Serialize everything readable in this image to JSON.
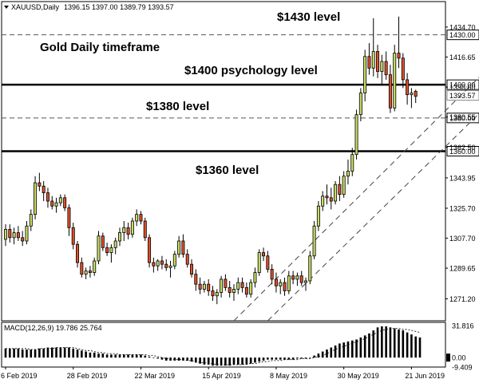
{
  "chart_data": {
    "type": "candlestick",
    "header": {
      "symbol_line": "XAUUSD,Daily",
      "ohlc_text": "1396.15 1397.00 1389.79 1393.57",
      "macd_label": "MACD(12,26,9) 19.786 25.764"
    },
    "annotations": [
      "$1430 level",
      "Gold Daily timeframe",
      "$1400 psychology level",
      "$1380 level",
      "$1360 level"
    ],
    "price_axis": {
      "ylim": [
        1258,
        1450
      ],
      "ticks": [
        "1434.70",
        "1416.65",
        "1398.60",
        "1380.55",
        "1362.50",
        "1343.95",
        "1325.70",
        "1307.70",
        "1289.65",
        "1271.20"
      ],
      "tick_values": [
        1434.7,
        1416.65,
        1398.6,
        1380.55,
        1362.5,
        1343.95,
        1325.7,
        1307.7,
        1289.65,
        1271.2
      ]
    },
    "levels": [
      {
        "label": "1430.00",
        "value": 1430,
        "style": "dashed"
      },
      {
        "label": "1400.00",
        "value": 1400,
        "style": "solid-thick"
      },
      {
        "label": "1393.57",
        "value": 1393.57,
        "style": "current-price"
      },
      {
        "label": "1380.00",
        "value": 1380,
        "style": "dashed"
      },
      {
        "label": "1360.00",
        "value": 1360,
        "style": "solid-thick"
      }
    ],
    "channel": {
      "lower": [
        [
          62,
          1258
        ],
        [
          101,
          1345
        ],
        [
          112,
          1380
        ],
        [
          131,
          1430
        ]
      ],
      "upper": [
        [
          54,
          1258
        ],
        [
          89,
          1345
        ],
        [
          103,
          1395
        ],
        [
          130,
          1450
        ]
      ]
    },
    "date_axis": {
      "labels": [
        "6 Feb 2019",
        "28 Feb 2019",
        "22 Mar 2019",
        "15 Apr 2019",
        "8 May 2019",
        "30 May 2019",
        "21 Jun 2019"
      ],
      "label_index": [
        0,
        16,
        32,
        48,
        64,
        80,
        96
      ]
    },
    "candles": [
      [
        1307,
        1316,
        1303,
        1313
      ],
      [
        1313,
        1316,
        1305,
        1308
      ],
      [
        1308,
        1314,
        1304,
        1311
      ],
      [
        1311,
        1315,
        1306,
        1308
      ],
      [
        1308,
        1312,
        1303,
        1306
      ],
      [
        1306,
        1318,
        1304,
        1315
      ],
      [
        1315,
        1325,
        1312,
        1322
      ],
      [
        1322,
        1345,
        1319,
        1341
      ],
      [
        1341,
        1347,
        1336,
        1339
      ],
      [
        1339,
        1342,
        1330,
        1335
      ],
      [
        1335,
        1338,
        1326,
        1330
      ],
      [
        1330,
        1333,
        1325,
        1327
      ],
      [
        1327,
        1332,
        1323,
        1329
      ],
      [
        1329,
        1334,
        1327,
        1332
      ],
      [
        1332,
        1334,
        1324,
        1326
      ],
      [
        1326,
        1328,
        1309,
        1314
      ],
      [
        1314,
        1317,
        1301,
        1304
      ],
      [
        1304,
        1306,
        1290,
        1293
      ],
      [
        1293,
        1296,
        1284,
        1286
      ],
      [
        1286,
        1290,
        1283,
        1288
      ],
      [
        1288,
        1291,
        1284,
        1287
      ],
      [
        1287,
        1296,
        1285,
        1294
      ],
      [
        1294,
        1312,
        1292,
        1309
      ],
      [
        1309,
        1311,
        1300,
        1302
      ],
      [
        1302,
        1305,
        1297,
        1299
      ],
      [
        1299,
        1304,
        1293,
        1302
      ],
      [
        1302,
        1308,
        1298,
        1306
      ],
      [
        1306,
        1314,
        1303,
        1311
      ],
      [
        1311,
        1318,
        1306,
        1314
      ],
      [
        1314,
        1317,
        1307,
        1310
      ],
      [
        1310,
        1320,
        1308,
        1318
      ],
      [
        1318,
        1325,
        1315,
        1322
      ],
      [
        1322,
        1324,
        1316,
        1318
      ],
      [
        1318,
        1320,
        1306,
        1308
      ],
      [
        1308,
        1310,
        1290,
        1293
      ],
      [
        1293,
        1296,
        1287,
        1291
      ],
      [
        1291,
        1295,
        1288,
        1294
      ],
      [
        1294,
        1297,
        1289,
        1292
      ],
      [
        1292,
        1295,
        1288,
        1290
      ],
      [
        1290,
        1294,
        1284,
        1291
      ],
      [
        1291,
        1300,
        1289,
        1298
      ],
      [
        1298,
        1309,
        1296,
        1306
      ],
      [
        1306,
        1310,
        1296,
        1298
      ],
      [
        1298,
        1301,
        1290,
        1292
      ],
      [
        1292,
        1295,
        1284,
        1286
      ],
      [
        1286,
        1289,
        1276,
        1280
      ],
      [
        1280,
        1284,
        1274,
        1277
      ],
      [
        1277,
        1282,
        1275,
        1280
      ],
      [
        1280,
        1283,
        1273,
        1276
      ],
      [
        1276,
        1279,
        1270,
        1273
      ],
      [
        1273,
        1277,
        1268,
        1275
      ],
      [
        1275,
        1285,
        1272,
        1283
      ],
      [
        1283,
        1286,
        1276,
        1278
      ],
      [
        1278,
        1282,
        1272,
        1275
      ],
      [
        1275,
        1280,
        1270,
        1277
      ],
      [
        1277,
        1284,
        1274,
        1281
      ],
      [
        1281,
        1284,
        1275,
        1278
      ],
      [
        1278,
        1281,
        1272,
        1274
      ],
      [
        1274,
        1283,
        1272,
        1281
      ],
      [
        1281,
        1290,
        1278,
        1287
      ],
      [
        1287,
        1301,
        1285,
        1299
      ],
      [
        1299,
        1302,
        1294,
        1297
      ],
      [
        1297,
        1300,
        1287,
        1289
      ],
      [
        1289,
        1292,
        1280,
        1283
      ],
      [
        1283,
        1287,
        1275,
        1279
      ],
      [
        1279,
        1283,
        1274,
        1281
      ],
      [
        1281,
        1284,
        1273,
        1276
      ],
      [
        1276,
        1288,
        1274,
        1285
      ],
      [
        1285,
        1288,
        1280,
        1283
      ],
      [
        1283,
        1287,
        1279,
        1285
      ],
      [
        1285,
        1288,
        1279,
        1281
      ],
      [
        1281,
        1284,
        1276,
        1282
      ],
      [
        1282,
        1300,
        1280,
        1297
      ],
      [
        1297,
        1318,
        1295,
        1315
      ],
      [
        1315,
        1330,
        1312,
        1327
      ],
      [
        1327,
        1336,
        1324,
        1333
      ],
      [
        1333,
        1340,
        1328,
        1332
      ],
      [
        1332,
        1338,
        1325,
        1330
      ],
      [
        1330,
        1342,
        1328,
        1340
      ],
      [
        1340,
        1345,
        1330,
        1334
      ],
      [
        1334,
        1348,
        1332,
        1345
      ],
      [
        1345,
        1355,
        1340,
        1348
      ],
      [
        1348,
        1362,
        1345,
        1358
      ],
      [
        1358,
        1385,
        1355,
        1382
      ],
      [
        1382,
        1398,
        1378,
        1395
      ],
      [
        1395,
        1421,
        1390,
        1417
      ],
      [
        1417,
        1425,
        1406,
        1410
      ],
      [
        1410,
        1440,
        1405,
        1420
      ],
      [
        1420,
        1424,
        1404,
        1408
      ],
      [
        1408,
        1418,
        1400,
        1414
      ],
      [
        1414,
        1420,
        1403,
        1406
      ],
      [
        1406,
        1412,
        1383,
        1386
      ],
      [
        1386,
        1424,
        1384,
        1419
      ],
      [
        1419,
        1441,
        1410,
        1416
      ],
      [
        1416,
        1419,
        1398,
        1403
      ],
      [
        1403,
        1407,
        1388,
        1394
      ],
      [
        1394,
        1398,
        1386,
        1395
      ],
      [
        1396,
        1397,
        1389,
        1393
      ]
    ],
    "macd": {
      "ylim": [
        -9.409,
        35
      ],
      "ticks": [
        "31.816",
        "0.00",
        "-9.409"
      ],
      "tick_values": [
        31.816,
        0,
        -9.409
      ],
      "histogram": [
        9,
        9,
        9,
        9,
        8,
        8,
        8,
        8,
        9,
        9,
        10,
        10,
        10,
        10,
        10,
        10,
        9,
        8,
        7,
        6,
        5,
        5,
        4,
        4,
        3,
        3,
        3,
        3,
        3,
        3,
        3,
        3,
        3,
        2,
        1,
        0,
        -1,
        -2,
        -3,
        -3,
        -3,
        -3,
        -3,
        -3,
        -4,
        -5,
        -6,
        -7,
        -7,
        -8,
        -8,
        -8,
        -8,
        -8,
        -7,
        -7,
        -7,
        -7,
        -6,
        -5,
        -4,
        -3,
        -2,
        -2,
        -2,
        -2,
        -2,
        -2,
        -2,
        -1,
        -1,
        -1,
        0,
        2,
        4,
        6,
        8,
        10,
        12,
        14,
        15,
        16,
        17,
        18,
        20,
        22,
        24,
        27,
        30,
        31,
        31,
        30,
        29,
        28,
        27,
        25,
        23,
        21,
        20
      ],
      "signal": [
        9,
        9,
        9,
        9,
        9,
        9,
        8,
        8,
        9,
        9,
        9,
        9,
        10,
        10,
        10,
        10,
        10,
        9,
        8,
        7,
        7,
        6,
        5,
        5,
        4,
        4,
        4,
        3,
        3,
        3,
        3,
        3,
        3,
        3,
        2,
        2,
        1,
        0,
        -1,
        -1,
        -2,
        -2,
        -2,
        -3,
        -3,
        -4,
        -5,
        -5,
        -6,
        -6,
        -7,
        -7,
        -7,
        -7,
        -7,
        -7,
        -7,
        -6,
        -6,
        -6,
        -5,
        -4,
        -4,
        -3,
        -3,
        -3,
        -2,
        -2,
        -2,
        -2,
        -1,
        -1,
        -1,
        0,
        1,
        2,
        4,
        6,
        8,
        10,
        11,
        13,
        14,
        16,
        17,
        19,
        21,
        23,
        25,
        27,
        28,
        29,
        29,
        29,
        28,
        28,
        27,
        26,
        25
      ]
    }
  }
}
